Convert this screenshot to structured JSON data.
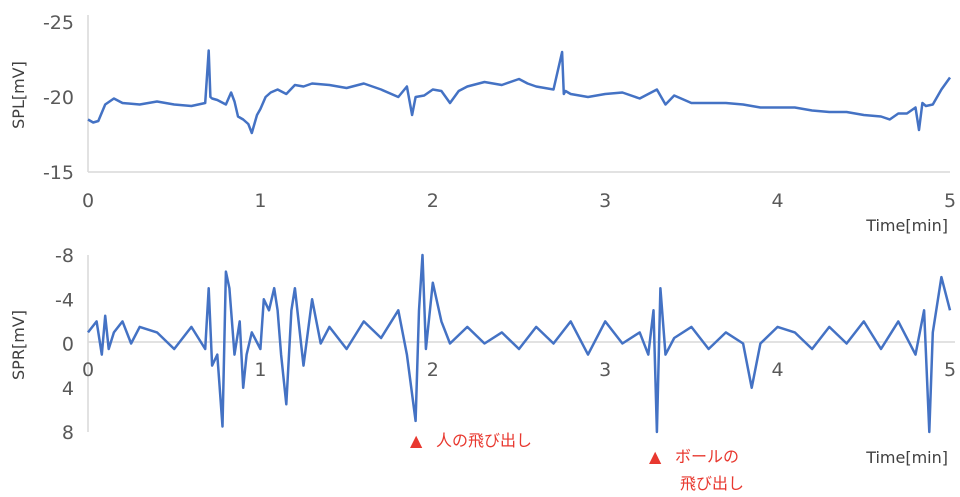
{
  "chart_data": [
    {
      "type": "line",
      "ylabel": "SPL[mV]",
      "xlabel": "Time[min]",
      "xlim": [
        0,
        5
      ],
      "ylim": [
        -25,
        -15
      ],
      "y_inverted": true,
      "x_ticks": [
        "0",
        "1",
        "2",
        "3",
        "4",
        "5"
      ],
      "y_ticks": [
        "-25",
        "-20",
        "-15"
      ],
      "color": "#4472c4",
      "series": [
        {
          "x": [
            0,
            0.03,
            0.06,
            0.1,
            0.15,
            0.2,
            0.3,
            0.4,
            0.5,
            0.6,
            0.68,
            0.7,
            0.71,
            0.72,
            0.75,
            0.8,
            0.83,
            0.85,
            0.87,
            0.9,
            0.93,
            0.95,
            0.98,
            1.0,
            1.03,
            1.06,
            1.1,
            1.15,
            1.2,
            1.25,
            1.3,
            1.4,
            1.5,
            1.6,
            1.7,
            1.8,
            1.85,
            1.88,
            1.9,
            1.95,
            2.0,
            2.05,
            2.1,
            2.15,
            2.2,
            2.3,
            2.4,
            2.5,
            2.55,
            2.6,
            2.7,
            2.75,
            2.76,
            2.77,
            2.8,
            2.9,
            3.0,
            3.1,
            3.2,
            3.3,
            3.35,
            3.4,
            3.5,
            3.6,
            3.7,
            3.8,
            3.9,
            4.0,
            4.1,
            4.2,
            4.3,
            4.4,
            4.5,
            4.6,
            4.65,
            4.7,
            4.75,
            4.8,
            4.82,
            4.84,
            4.86,
            4.9,
            4.95,
            5.0
          ],
          "values": [
            -18.5,
            -18.3,
            -18.4,
            -19.5,
            -19.9,
            -19.6,
            -19.5,
            -19.7,
            -19.5,
            -19.4,
            -19.6,
            -23.1,
            -20.0,
            -19.9,
            -19.8,
            -19.5,
            -20.3,
            -19.7,
            -18.7,
            -18.5,
            -18.2,
            -17.6,
            -18.8,
            -19.2,
            -20.0,
            -20.3,
            -20.5,
            -20.2,
            -20.8,
            -20.7,
            -20.9,
            -20.8,
            -20.6,
            -20.9,
            -20.5,
            -20.0,
            -20.7,
            -18.8,
            -20.0,
            -20.1,
            -20.5,
            -20.4,
            -19.6,
            -20.4,
            -20.7,
            -21.0,
            -20.8,
            -21.2,
            -20.9,
            -20.7,
            -20.5,
            -23.0,
            -20.2,
            -20.4,
            -20.2,
            -20.0,
            -20.2,
            -20.3,
            -19.9,
            -20.5,
            -19.5,
            -20.1,
            -19.6,
            -19.6,
            -19.6,
            -19.5,
            -19.3,
            -19.3,
            -19.3,
            -19.1,
            -19.0,
            -19.0,
            -18.8,
            -18.7,
            -18.5,
            -18.9,
            -18.9,
            -19.3,
            -17.8,
            -19.6,
            -19.4,
            -19.5,
            -20.5,
            -21.3
          ]
        }
      ]
    },
    {
      "type": "line",
      "ylabel": "SPR[mV]",
      "xlabel": "Time[min]",
      "xlim": [
        0,
        5
      ],
      "ylim": [
        -8,
        8
      ],
      "y_inverted": true,
      "x_ticks": [
        "0",
        "1",
        "2",
        "3",
        "4",
        "5"
      ],
      "y_ticks": [
        "-8",
        "-4",
        "0",
        "4",
        "8"
      ],
      "color": "#4472c4",
      "series": [
        {
          "x": [
            0,
            0.05,
            0.08,
            0.1,
            0.12,
            0.15,
            0.2,
            0.25,
            0.3,
            0.4,
            0.5,
            0.6,
            0.68,
            0.7,
            0.72,
            0.75,
            0.78,
            0.8,
            0.82,
            0.85,
            0.88,
            0.9,
            0.92,
            0.95,
            1.0,
            1.02,
            1.05,
            1.08,
            1.1,
            1.12,
            1.15,
            1.18,
            1.2,
            1.25,
            1.3,
            1.35,
            1.4,
            1.5,
            1.6,
            1.7,
            1.8,
            1.85,
            1.9,
            1.92,
            1.94,
            1.96,
            2.0,
            2.05,
            2.1,
            2.2,
            2.3,
            2.4,
            2.5,
            2.6,
            2.7,
            2.8,
            2.9,
            3.0,
            3.1,
            3.2,
            3.25,
            3.28,
            3.3,
            3.32,
            3.35,
            3.4,
            3.5,
            3.6,
            3.7,
            3.8,
            3.85,
            3.9,
            4.0,
            4.1,
            4.2,
            4.3,
            4.4,
            4.5,
            4.6,
            4.7,
            4.8,
            4.85,
            4.88,
            4.9,
            4.95,
            5.0
          ],
          "values": [
            -1,
            -2,
            1,
            -2.5,
            0.5,
            -1,
            -2,
            0,
            -1.5,
            -1,
            0.5,
            -1.5,
            0.5,
            -5,
            2,
            1,
            7.5,
            -6.5,
            -5,
            1,
            -2,
            4,
            1,
            -1,
            0.5,
            -4,
            -3,
            -5,
            -3,
            1,
            5.5,
            -3,
            -5,
            2,
            -4,
            0,
            -1.5,
            0.5,
            -2,
            -0.5,
            -3,
            1,
            7,
            -3,
            -8,
            0.5,
            -5.5,
            -2,
            0,
            -1.5,
            0,
            -1,
            0.5,
            -1.5,
            0,
            -2,
            1,
            -2,
            0,
            -1,
            1,
            -3,
            8,
            -5,
            1,
            -0.5,
            -1.5,
            0.5,
            -1,
            0,
            4,
            0,
            -1.5,
            -1,
            0.5,
            -1.5,
            0,
            -2,
            0.5,
            -2,
            1,
            -3,
            8,
            -1,
            -6,
            -3
          ]
        }
      ]
    }
  ],
  "annotations": [
    {
      "marker": "▲",
      "text": "人の飛び出し",
      "x": 1.93
    },
    {
      "marker": "▲",
      "text": "ボールの",
      "text2": "飛び出し",
      "x": 3.29
    }
  ]
}
